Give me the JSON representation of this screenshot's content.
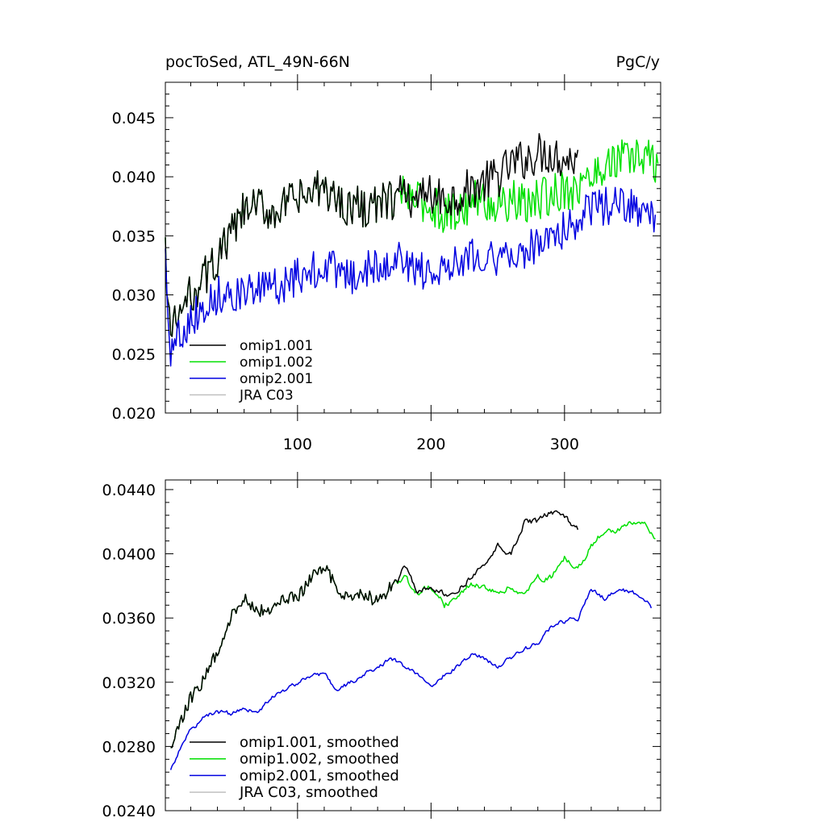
{
  "chart_data": [
    {
      "type": "line",
      "title": "pocToSed, ATL_49N-66N",
      "units": "PgC/y",
      "xlim": [
        1,
        372
      ],
      "ylim": [
        0.02,
        0.048
      ],
      "xticks": [
        100,
        200,
        300
      ],
      "xtick_labels": [
        "100",
        "200",
        "300"
      ],
      "yticks": [
        0.02,
        0.025,
        0.03,
        0.035,
        0.04,
        0.045
      ],
      "ytick_labels": [
        "0.020",
        "0.025",
        "0.030",
        "0.035",
        "0.040",
        "0.045"
      ],
      "legend_position": "bottom-left",
      "legend": [
        "omip1.001",
        "omip1.002",
        "omip2.001",
        "JRA C03"
      ],
      "series": [
        {
          "name": "omip1.001",
          "color": "#000000",
          "x": [
            1,
            5,
            10,
            20,
            30,
            40,
            50,
            60,
            70,
            80,
            90,
            100,
            110,
            120,
            130,
            140,
            150,
            160,
            170,
            180,
            190,
            200,
            210,
            220,
            230,
            240,
            250,
            260,
            270,
            280,
            290,
            300,
            310
          ],
          "y": [
            0.0335,
            0.0265,
            0.028,
            0.03,
            0.0315,
            0.033,
            0.035,
            0.037,
            0.0375,
            0.037,
            0.0375,
            0.038,
            0.0385,
            0.039,
            0.038,
            0.0375,
            0.0375,
            0.0375,
            0.038,
            0.0385,
            0.038,
            0.0385,
            0.038,
            0.0385,
            0.039,
            0.0395,
            0.04,
            0.041,
            0.0415,
            0.042,
            0.042,
            0.0415,
            0.0415
          ],
          "amp": 0.0018
        },
        {
          "name": "omip1.002",
          "color": "#00e000",
          "x": [
            1,
            5,
            10,
            20,
            30,
            40,
            50,
            60,
            70,
            80,
            90,
            100,
            110,
            120,
            130,
            140,
            150,
            160,
            170,
            180,
            190,
            200,
            210,
            220,
            230,
            240,
            250,
            260,
            270,
            280,
            290,
            300,
            310,
            320,
            330,
            340,
            350,
            360,
            370
          ],
          "y": [
            0.0335,
            0.0265,
            0.028,
            0.03,
            0.0315,
            0.033,
            0.035,
            0.037,
            0.0375,
            0.037,
            0.0375,
            0.038,
            0.0385,
            0.039,
            0.038,
            0.0375,
            0.0375,
            0.0375,
            0.038,
            0.0385,
            0.038,
            0.0375,
            0.037,
            0.037,
            0.038,
            0.038,
            0.0375,
            0.038,
            0.0375,
            0.038,
            0.0385,
            0.039,
            0.039,
            0.04,
            0.041,
            0.0415,
            0.0415,
            0.0418,
            0.041
          ],
          "amp": 0.0018
        },
        {
          "name": "omip2.001",
          "color": "#0000e0",
          "x": [
            1,
            5,
            10,
            20,
            30,
            40,
            50,
            60,
            70,
            80,
            90,
            100,
            110,
            120,
            130,
            140,
            150,
            160,
            170,
            180,
            190,
            200,
            210,
            220,
            230,
            240,
            250,
            260,
            270,
            280,
            290,
            300,
            310,
            320,
            330,
            340,
            350,
            360,
            368
          ],
          "y": [
            0.0335,
            0.025,
            0.0265,
            0.028,
            0.029,
            0.03,
            0.0303,
            0.03,
            0.0305,
            0.0305,
            0.031,
            0.0315,
            0.032,
            0.0325,
            0.032,
            0.0315,
            0.032,
            0.0325,
            0.033,
            0.033,
            0.032,
            0.032,
            0.0325,
            0.033,
            0.0335,
            0.0335,
            0.033,
            0.033,
            0.0335,
            0.0345,
            0.035,
            0.0355,
            0.036,
            0.0375,
            0.0375,
            0.0375,
            0.0375,
            0.037,
            0.0365
          ],
          "amp": 0.0016
        },
        {
          "name": "JRA C03",
          "color": "#c0c0c0",
          "x": [],
          "y": [],
          "amp": 0
        }
      ]
    },
    {
      "type": "line",
      "xlim": [
        1,
        372
      ],
      "ylim": [
        0.024,
        0.0446
      ],
      "xticks": [
        100,
        200,
        300
      ],
      "yticks": [
        0.024,
        0.028,
        0.032,
        0.036,
        0.04,
        0.044
      ],
      "ytick_labels": [
        "0.0240",
        "0.0280",
        "0.0320",
        "0.0360",
        "0.0400",
        "0.0440"
      ],
      "legend_position": "bottom-left",
      "legend": [
        "omip1.001, smoothed",
        "omip1.002, smoothed",
        "omip2.001, smoothed",
        "JRA C03, smoothed"
      ],
      "series": [
        {
          "name": "omip1.001, smoothed",
          "color": "#000000",
          "x": [
            5,
            10,
            20,
            30,
            40,
            50,
            60,
            70,
            80,
            90,
            100,
            110,
            120,
            130,
            140,
            150,
            160,
            170,
            175,
            180,
            190,
            200,
            210,
            220,
            230,
            240,
            250,
            260,
            270,
            280,
            290,
            300,
            310
          ],
          "y": [
            0.0276,
            0.029,
            0.031,
            0.0322,
            0.034,
            0.036,
            0.0372,
            0.0365,
            0.0363,
            0.0372,
            0.0373,
            0.0385,
            0.0392,
            0.0378,
            0.0372,
            0.0375,
            0.037,
            0.038,
            0.0383,
            0.0393,
            0.0375,
            0.038,
            0.0375,
            0.0378,
            0.0385,
            0.0393,
            0.0405,
            0.04,
            0.042,
            0.042,
            0.0426,
            0.0422,
            0.0415
          ],
          "amp": 0.0004
        },
        {
          "name": "omip1.002, smoothed",
          "color": "#00e000",
          "x": [
            5,
            10,
            20,
            30,
            40,
            50,
            60,
            70,
            80,
            90,
            100,
            110,
            120,
            130,
            140,
            150,
            160,
            170,
            180,
            190,
            200,
            210,
            220,
            230,
            240,
            250,
            260,
            270,
            280,
            290,
            300,
            310,
            320,
            330,
            340,
            350,
            360,
            368
          ],
          "y": [
            0.0276,
            0.029,
            0.031,
            0.0322,
            0.034,
            0.036,
            0.0372,
            0.0365,
            0.0363,
            0.0372,
            0.0373,
            0.0385,
            0.0392,
            0.0378,
            0.0372,
            0.0375,
            0.037,
            0.038,
            0.0385,
            0.0375,
            0.038,
            0.0368,
            0.0375,
            0.038,
            0.038,
            0.0375,
            0.038,
            0.0375,
            0.0385,
            0.0385,
            0.0398,
            0.039,
            0.0405,
            0.0415,
            0.0415,
            0.042,
            0.0418,
            0.041
          ],
          "amp": 0.0004
        },
        {
          "name": "omip2.001, smoothed",
          "color": "#0000e0",
          "x": [
            5,
            10,
            20,
            30,
            40,
            50,
            60,
            70,
            80,
            90,
            100,
            110,
            120,
            130,
            140,
            150,
            160,
            170,
            180,
            190,
            200,
            210,
            220,
            230,
            240,
            250,
            260,
            270,
            280,
            290,
            300,
            310,
            320,
            330,
            340,
            350,
            360,
            365
          ],
          "y": [
            0.0265,
            0.0275,
            0.029,
            0.0298,
            0.0302,
            0.03,
            0.0305,
            0.03,
            0.031,
            0.0315,
            0.032,
            0.0325,
            0.0325,
            0.0315,
            0.032,
            0.0325,
            0.033,
            0.0335,
            0.033,
            0.0325,
            0.0318,
            0.0325,
            0.033,
            0.0338,
            0.0335,
            0.033,
            0.0335,
            0.034,
            0.0345,
            0.0355,
            0.0358,
            0.036,
            0.0378,
            0.0372,
            0.0378,
            0.0376,
            0.0372,
            0.0366
          ],
          "amp": 0.0003
        },
        {
          "name": "JRA C03, smoothed",
          "color": "#c0c0c0",
          "x": [],
          "y": [],
          "amp": 0
        }
      ]
    }
  ]
}
